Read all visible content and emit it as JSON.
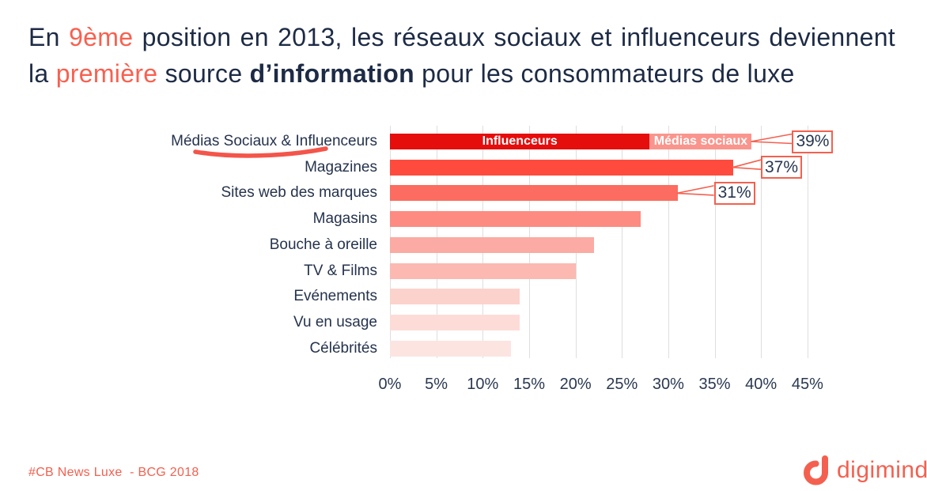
{
  "colors": {
    "accent": "#f4604f",
    "navy": "#1d2b45",
    "gridline": "#dedede",
    "callout_border": "#f4604f",
    "swoosh": "#f4554a"
  },
  "title": {
    "part1": "En ",
    "highlight1": "9ème",
    "part2": " position en 2013, les réseaux sociaux et influenceurs deviennent la ",
    "highlight2": "première",
    "part3": " source ",
    "bold": "d’information",
    "part4": " pour les consommateurs de luxe"
  },
  "chart_data": {
    "type": "bar",
    "orientation": "horizontal",
    "unit": "%",
    "categories": [
      "Médias Sociaux & Influenceurs",
      "Magazines",
      "Sites web des marques",
      "Magasins",
      "Bouche à oreille",
      "TV & Films",
      "Evénements",
      "Vu en usage",
      "Célébrités"
    ],
    "values": [
      39,
      37,
      31,
      27,
      22,
      20,
      14,
      14,
      13
    ],
    "first_row_stacked_segments": [
      {
        "label": "Influenceurs",
        "value": 28,
        "color": "#e60d0d"
      },
      {
        "label": "Médias sociaux",
        "value": 11,
        "color": "#fa958d"
      }
    ],
    "bar_colors": [
      "#e60d0d",
      "#ff4b3e",
      "#fd6c60",
      "#fd8b81",
      "#fbaba3",
      "#fbb9b2",
      "#fcd2cc",
      "#fddcd8",
      "#fce4e1"
    ],
    "callouts": [
      {
        "row": 0,
        "label": "39%"
      },
      {
        "row": 1,
        "label": "37%"
      },
      {
        "row": 2,
        "label": "31%"
      }
    ],
    "x_ticks": [
      "0%",
      "5%",
      "10%",
      "15%",
      "20%",
      "25%",
      "30%",
      "35%",
      "40%",
      "45%"
    ],
    "xlim": [
      0,
      46.6
    ],
    "grid": "vertical-only",
    "legend": "labels-inside-first-bar",
    "annotation": "hand-drawn red underline below 'Sociaux' in first category label"
  },
  "footer": {
    "source_label": "#CB News Luxe  - BCG 2018",
    "logo_text": "digimind"
  }
}
